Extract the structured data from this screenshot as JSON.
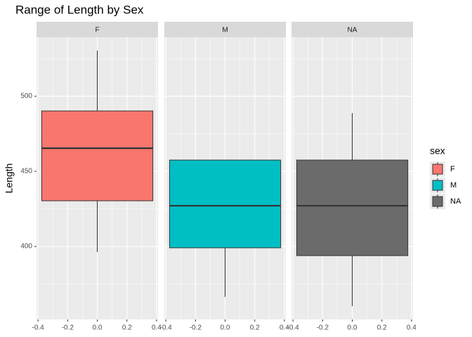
{
  "chart_data": {
    "type": "boxplot",
    "title": "Range of Length by Sex",
    "y_label": "Length",
    "legend_title": "sex",
    "facets": [
      {
        "name": "F",
        "color": "#f8766d",
        "min": 396.3,
        "q1": 430.4,
        "median": 465.4,
        "q3": 490.2,
        "max": 530.4
      },
      {
        "name": "M",
        "color": "#00bfc4",
        "min": 366.4,
        "q1": 399.1,
        "median": 427.1,
        "q3": 457.5,
        "max": 457.5
      },
      {
        "name": "NA",
        "color": "#6b6b6b",
        "min": 360.3,
        "q1": 393.9,
        "median": 427.1,
        "q3": 457.5,
        "max": 488.8
      }
    ],
    "box_xlim": [
      -0.375,
      0.375
    ],
    "xlim": [
      -0.41,
      0.41
    ],
    "xticks": [
      -0.4,
      -0.2,
      {
        "value": 0,
        "label": "0.0"
      },
      0.2,
      0.4
    ],
    "xminorticks": [
      -0.3,
      -0.1,
      0.1,
      0.3
    ],
    "ylim": [
      351.4,
      539.3
    ],
    "yticks": [
      400,
      450,
      500
    ],
    "yminorticks": [
      375,
      425,
      475,
      525
    ],
    "grid": true
  }
}
